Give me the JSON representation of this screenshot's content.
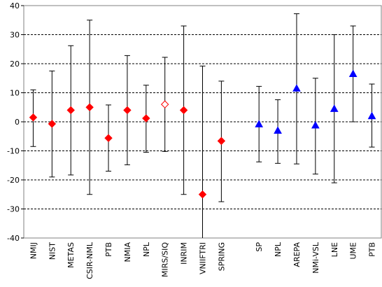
{
  "chart_data": {
    "type": "scatter",
    "title": "",
    "xlabel": "",
    "ylabel": "",
    "ylim": [
      -40,
      40
    ],
    "yticks": [
      -40,
      -30,
      -20,
      -10,
      0,
      10,
      20,
      30,
      40
    ],
    "grid": "horizontal-dashed",
    "categories": [
      "NMIJ",
      "NIST",
      "METAS",
      "CSIR-NML",
      "PTB",
      "NMIA",
      "NPL",
      "MIRS/SIQ",
      "INRIM",
      "VNIIFTRI",
      "SPRING",
      "",
      "SP",
      "NPL",
      "AREPA",
      "NMi-VSL",
      "LNE",
      "UME",
      "PTB"
    ],
    "series": [
      {
        "marker": "diamond-filled",
        "color": "#ff0000",
        "points": [
          {
            "label": "NMIJ",
            "y": 1.5,
            "low": -8.5,
            "high": 11.0
          },
          {
            "label": "NIST",
            "y": -0.7,
            "low": -19.0,
            "high": 17.5
          },
          {
            "label": "METAS",
            "y": 4.0,
            "low": -18.3,
            "high": 26.2
          },
          {
            "label": "CSIR-NML",
            "y": 5.0,
            "low": -25.0,
            "high": 35.0
          },
          {
            "label": "PTB",
            "y": -5.6,
            "low": -17.0,
            "high": 5.8
          },
          {
            "label": "NMIA",
            "y": 4.0,
            "low": -14.8,
            "high": 22.8
          },
          {
            "label": "NPL",
            "y": 1.2,
            "low": -10.5,
            "high": 12.6
          },
          {
            "label": "INRIM",
            "y": 4.0,
            "low": -25.0,
            "high": 33.0
          },
          {
            "label": "VNIIFTRI",
            "y": -25.0,
            "low": -40.0,
            "high": 19.2
          },
          {
            "label": "SPRING",
            "y": -6.6,
            "low": -27.5,
            "high": 14.0
          }
        ]
      },
      {
        "marker": "diamond-open",
        "color": "#ff0000",
        "points": [
          {
            "label": "MIRS/SIQ",
            "y": 6.0,
            "low": -10.2,
            "high": 22.2
          }
        ]
      },
      {
        "marker": "triangle-filled",
        "color": "#0000ff",
        "points": [
          {
            "label": "SP",
            "y": -0.8,
            "low": -13.8,
            "high": 12.2
          },
          {
            "label": "NPL",
            "y": -3.0,
            "low": -14.3,
            "high": 7.6
          },
          {
            "label": "AREPA",
            "y": 11.5,
            "low": -14.5,
            "high": 37.2
          },
          {
            "label": "NMi-VSL",
            "y": -1.2,
            "low": -18.0,
            "high": 15.0
          },
          {
            "label": "LNE",
            "y": 4.5,
            "low": -21.0,
            "high": 30.0
          },
          {
            "label": "UME",
            "y": 16.5,
            "low": 0.0,
            "high": 33.0
          },
          {
            "label": "PTB",
            "y": 2.0,
            "low": -8.7,
            "high": 13.0
          }
        ]
      }
    ]
  }
}
